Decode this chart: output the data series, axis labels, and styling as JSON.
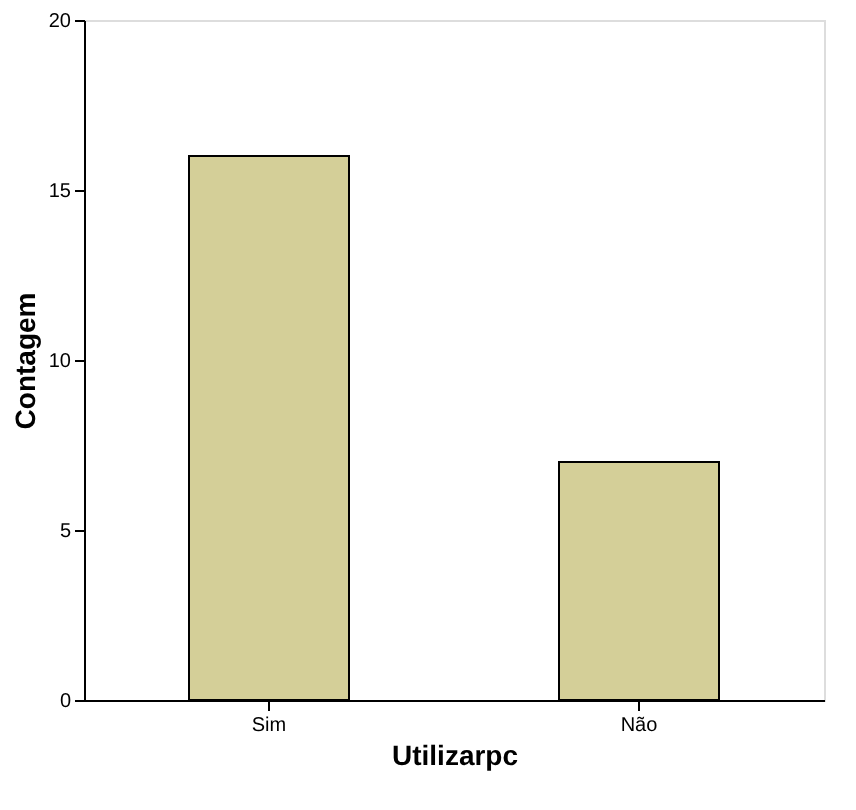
{
  "chart_data": {
    "type": "bar",
    "xlabel": "Utilizarpc",
    "ylabel": "Contagem",
    "categories": [
      "Sim",
      "Não"
    ],
    "values": [
      16,
      7
    ],
    "color": "#d4cf98",
    "ylim": [
      0,
      20
    ],
    "yticks": [
      0,
      5,
      10,
      15,
      20
    ],
    "grid": false
  }
}
